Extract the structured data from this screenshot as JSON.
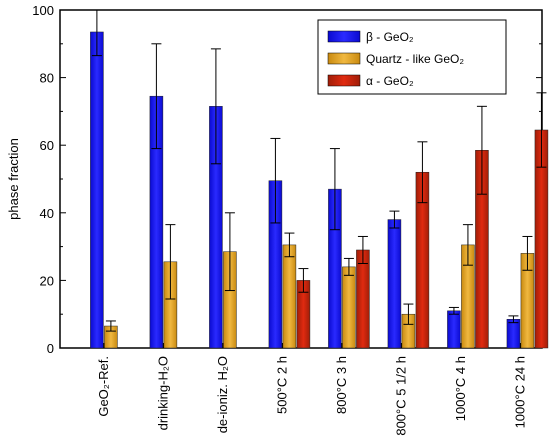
{
  "chart_data": {
    "type": "bar",
    "ylabel": "phase fraction",
    "ylim": [
      0,
      100
    ],
    "yticks": [
      0,
      20,
      40,
      60,
      80,
      100
    ],
    "categories": [
      "GeO₂-Ref.",
      "drinking-H₂O",
      "de-ioniz. H₂O",
      "500°C 2 h",
      "800°C 3 h",
      "800°C 5 1/2 h",
      "1000°C 4 h",
      "1000°C 24 h"
    ],
    "series": [
      {
        "name": "β - GeO₂",
        "color": "#1a1aff",
        "values": [
          93.5,
          74.5,
          71.5,
          49.5,
          47,
          38,
          11,
          8.5
        ],
        "errors": [
          7,
          15.5,
          17,
          12.5,
          12,
          2.5,
          1,
          1
        ]
      },
      {
        "name": "Quartz - like GeO₂",
        "color": "#e0a020",
        "values": [
          6.5,
          25.5,
          28.5,
          30.5,
          24,
          10,
          30.5,
          28
        ],
        "errors": [
          1.5,
          11,
          11.5,
          3.5,
          2.5,
          3,
          6,
          5
        ]
      },
      {
        "name": "α - GeO₂",
        "color": "#b22a12",
        "values": [
          null,
          null,
          null,
          20,
          29,
          52,
          58.5,
          64.5
        ],
        "errors": [
          null,
          null,
          null,
          3.5,
          4,
          9,
          13,
          11
        ]
      }
    ],
    "legend_position": "top-right",
    "grid": false
  }
}
